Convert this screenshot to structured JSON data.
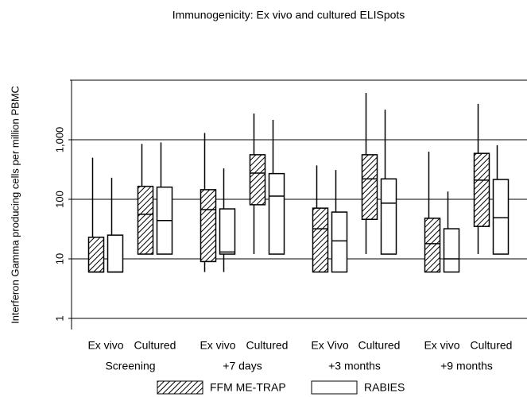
{
  "chart_data": {
    "type": "box",
    "title": "Immunogenicity: Ex vivo and cultured ELISpots",
    "ylabel": "Interferon Gamma producing cells per million PBMC",
    "categories": [
      "Ex vivo",
      "Cultured",
      "Ex vivo",
      "Cultured",
      "Ex Vivo",
      "Cultured",
      "Ex vivo",
      "Cultured"
    ],
    "groups": [
      "Screening",
      "+7 days",
      "+3 months",
      "+9 months"
    ],
    "series": [
      {
        "name": "FFM ME-TRAP",
        "color": "#000000",
        "pattern": "hatch",
        "min": [
          6,
          12,
          6,
          12,
          6,
          12,
          6,
          12
        ],
        "q1": [
          6,
          12,
          9,
          81,
          6,
          46,
          6,
          35
        ],
        "median": [
          6,
          56,
          67,
          275,
          32,
          220,
          18,
          210
        ],
        "q3": [
          23,
          165,
          145,
          560,
          71,
          560,
          48,
          590
        ],
        "max": [
          500,
          850,
          1300,
          2750,
          370,
          6100,
          630,
          4000
        ]
      },
      {
        "name": "RABIES",
        "color": "#000000",
        "pattern": "none",
        "min": [
          6,
          12,
          6,
          12,
          6,
          12,
          6,
          12
        ],
        "q1": [
          6,
          12,
          12,
          12,
          6,
          12,
          6,
          12
        ],
        "median": [
          6,
          44,
          13,
          113,
          20,
          86,
          10,
          49
        ],
        "q3": [
          25,
          160,
          69,
          270,
          61,
          220,
          32,
          215
        ],
        "max": [
          230,
          900,
          330,
          2150,
          310,
          3200,
          135,
          810
        ]
      }
    ],
    "ylim": [
      0.65,
      10000
    ],
    "yticks": [
      1,
      10,
      100,
      {
        "value": 1000,
        "label": "1,000"
      }
    ],
    "log_scale": true,
    "grid": true,
    "legend": "bottom"
  }
}
